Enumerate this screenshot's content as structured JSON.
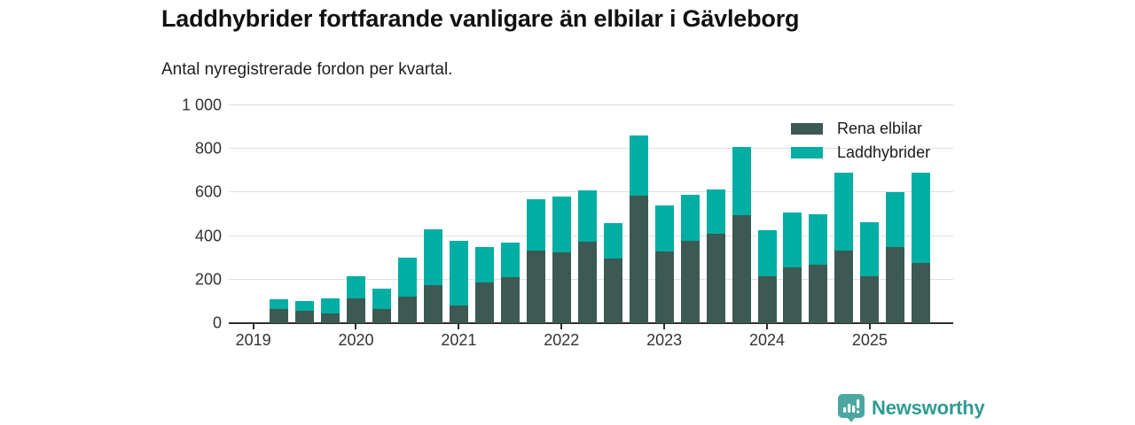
{
  "header": {
    "title": "Laddhybrider fortfarande vanligare än elbilar i Gävleborg",
    "subtitle": "Antal nyregistrerade fordon per kvartal."
  },
  "footer": {
    "brand": "Newsworthy"
  },
  "colors": {
    "rena_elbilar": "#3c5a53",
    "laddhybrider": "#00aea4",
    "grid": "#dfdfdf",
    "axis": "#2f2f2f",
    "brand_badge": "#4ba79f",
    "brand_text": "#2f9b94"
  },
  "chart_data": {
    "type": "bar",
    "stacked": true,
    "title": "Laddhybrider fortfarande vanligare än elbilar i Gävleborg",
    "subtitle": "Antal nyregistrerade fordon per kvartal.",
    "xlabel": "",
    "ylabel": "",
    "ylim": [
      0,
      1000
    ],
    "yticks": [
      0,
      200,
      400,
      600,
      800,
      1000
    ],
    "ytick_labels": [
      "0",
      "200",
      "400",
      "600",
      "800",
      "1 000"
    ],
    "xticks": [
      "2019",
      "2020",
      "2021",
      "2022",
      "2023",
      "2024",
      "2025"
    ],
    "grid": "horizontal",
    "legend_position": "top-right",
    "x": [
      "2019-Q2",
      "2019-Q3",
      "2019-Q4",
      "2020-Q1",
      "2020-Q2",
      "2020-Q3",
      "2020-Q4",
      "2021-Q1",
      "2021-Q2",
      "2021-Q3",
      "2021-Q4",
      "2022-Q1",
      "2022-Q2",
      "2022-Q3",
      "2022-Q4",
      "2023-Q1",
      "2023-Q2",
      "2023-Q3",
      "2023-Q4",
      "2024-Q1",
      "2024-Q2",
      "2024-Q3",
      "2024-Q4",
      "2025-Q1",
      "2025-Q2",
      "2025-Q3"
    ],
    "series": [
      {
        "name": "Rena elbilar",
        "color": "#3c5a53",
        "values": [
          65,
          55,
          45,
          115,
          65,
          120,
          175,
          80,
          185,
          210,
          335,
          325,
          375,
          295,
          585,
          330,
          380,
          410,
          495,
          215,
          255,
          270,
          335,
          215,
          350,
          275
        ]
      },
      {
        "name": "Laddhybrider",
        "color": "#00aea4",
        "values": [
          45,
          45,
          70,
          100,
          95,
          180,
          255,
          300,
          165,
          160,
          235,
          255,
          235,
          165,
          275,
          210,
          210,
          205,
          315,
          210,
          255,
          230,
          355,
          250,
          250,
          415
        ]
      }
    ]
  }
}
